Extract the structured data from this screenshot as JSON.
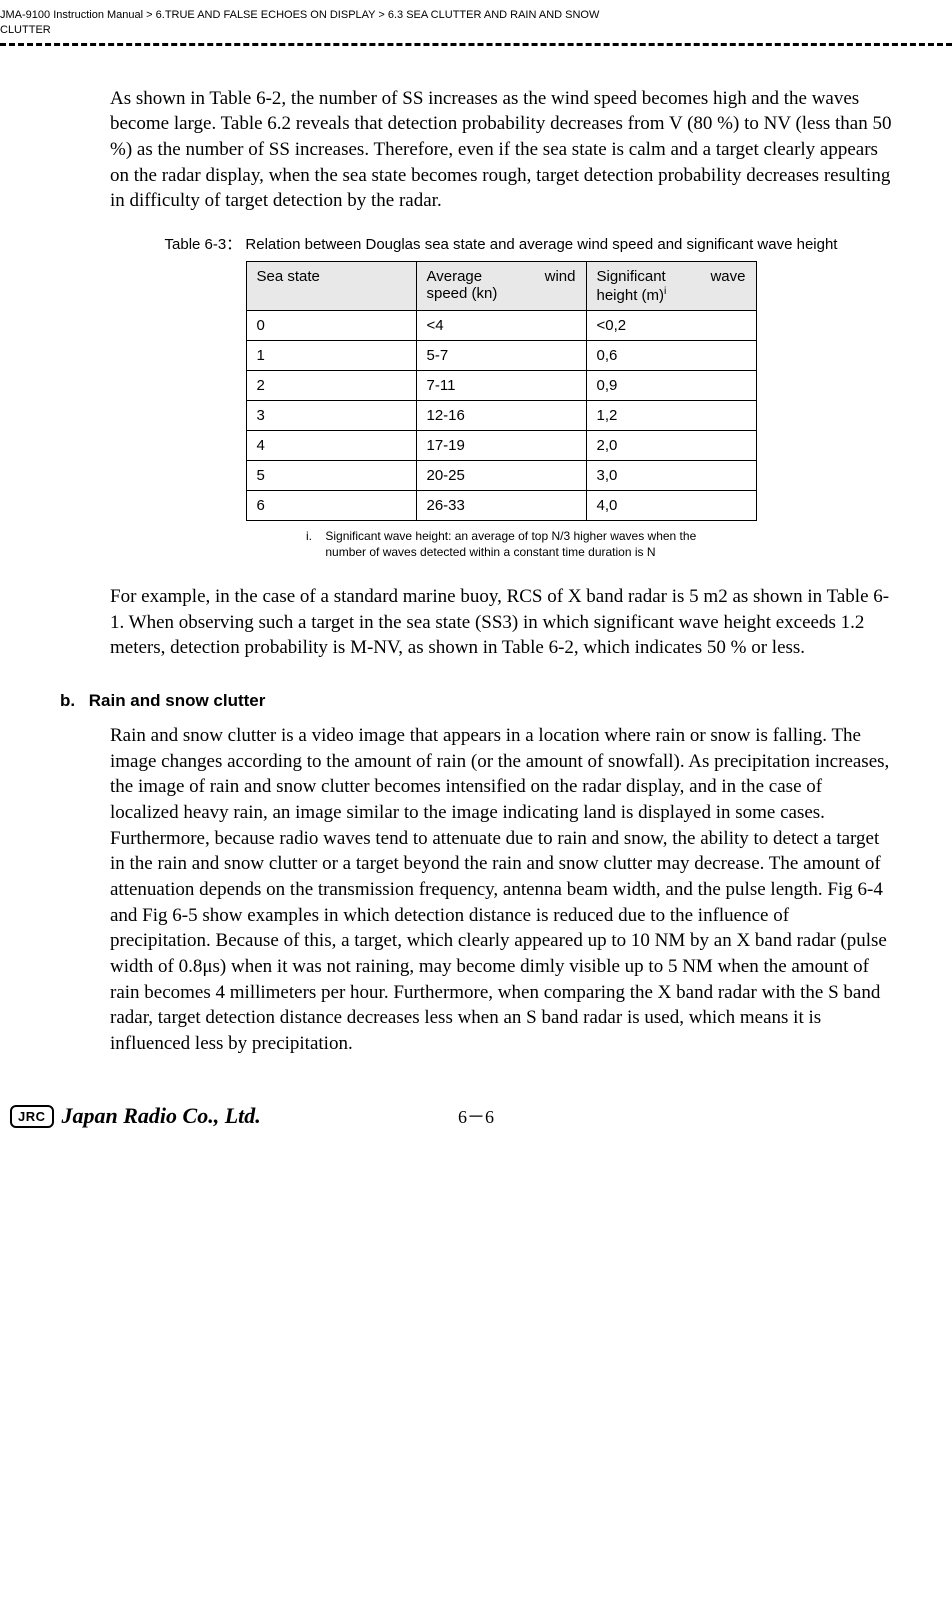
{
  "header": {
    "breadcrumb_1": "JMA-9100 Instruction Manual",
    "sep": ">",
    "breadcrumb_2": "6.TRUE AND FALSE ECHOES ON DISPLAY",
    "breadcrumb_3": "6.3  SEA CLUTTER AND RAIN AND SNOW",
    "breadcrumb_4": "CLUTTER"
  },
  "para1": "As shown in Table 6-2, the number of SS increases as the wind speed becomes high and the waves become large.  Table 6.2 reveals that detection probability decreases from V (80 %) to NV (less than 50 %) as the number of SS increases.  Therefore, even if the sea state is calm and a target clearly appears on the radar display, when the sea state becomes rough, target detection probability decreases resulting in difficulty of target detection by the radar.",
  "table": {
    "caption": "Table 6-3： Relation between Douglas sea state and average wind speed and significant wave height",
    "headers": {
      "c1": "Sea state",
      "c2a": "Average",
      "c2b": "wind",
      "c2c": "speed (kn)",
      "c3a": "Significant",
      "c3b": "wave",
      "c3c": "height (m)",
      "c3sup": "i"
    },
    "rows": [
      {
        "c1": "0",
        "c2": "<4",
        "c3": "<0,2"
      },
      {
        "c1": "1",
        "c2": "5-7",
        "c3": "0,6"
      },
      {
        "c1": "2",
        "c2": "7-11",
        "c3": "0,9"
      },
      {
        "c1": "3",
        "c2": "12-16",
        "c3": "1,2"
      },
      {
        "c1": "4",
        "c2": "17-19",
        "c3": "2,0"
      },
      {
        "c1": "5",
        "c2": "20-25",
        "c3": "3,0"
      },
      {
        "c1": "6",
        "c2": "26-33",
        "c3": "4,0"
      }
    ],
    "footnote_marker": "i.",
    "footnote_text": "Significant wave height: an average of top N/3 higher waves when the number of waves detected within a constant time duration is N"
  },
  "para2": "For example, in the case of a standard marine buoy, RCS of X band radar is 5 m2 as shown in Table 6-1.  When observing such a target in the sea state (SS3) in which significant wave height exceeds 1.2 meters, detection probability is M-NV, as shown in Table 6-2, which indicates 50 % or less.",
  "subsection": {
    "letter": "b.",
    "title": "Rain and snow clutter",
    "body": "Rain and snow clutter is a video image that appears in a location where rain or snow is falling.  The image changes according to the amount of rain (or the amount of snowfall). As precipitation increases, the image of rain and snow clutter becomes intensified on the radar display, and in the case of localized heavy rain, an image similar to the image indicating land is displayed in some cases.  Furthermore, because radio waves tend to attenuate due to rain and snow, the ability to detect a target in the rain and snow clutter or a target beyond the rain and snow clutter may decrease. The amount of attenuation depends on the transmission frequency, antenna beam width, and the pulse length. Fig 6-4 and Fig 6-5 show examples in which detection distance is reduced due to the influence of precipitation. Because of this, a target, which clearly appeared up to 10 NM by an X band radar (pulse width of 0.8μs) when it was not raining, may become dimly visible up to 5 NM when the amount of rain becomes 4 millimeters per hour.  Furthermore, when comparing the X band radar with the S band radar, target detection distance decreases less when an S band radar is used, which means it is influenced less by precipitation."
  },
  "footer": {
    "logo_box": "JRC",
    "logo_text": "Japan Radio Co., Ltd.",
    "page": "6－6"
  }
}
